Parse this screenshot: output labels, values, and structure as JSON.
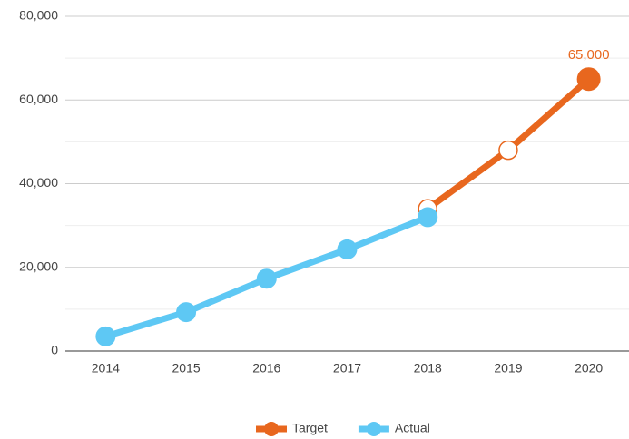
{
  "chart_data": {
    "type": "line",
    "categories": [
      "2014",
      "2015",
      "2016",
      "2017",
      "2018",
      "2019",
      "2020"
    ],
    "series": [
      {
        "name": "Target",
        "color": "#e8671e",
        "values": [
          null,
          null,
          null,
          null,
          34000,
          48000,
          65000
        ],
        "value_labels": [
          null,
          null,
          null,
          null,
          null,
          null,
          "65,000"
        ]
      },
      {
        "name": "Actual",
        "color": "#5ec8f4",
        "values": [
          3500,
          9300,
          17300,
          24300,
          32000,
          null,
          null
        ]
      }
    ],
    "ylim": [
      0,
      80000
    ],
    "yticks": [
      0,
      {
        "value": 20000,
        "label": "20,000"
      },
      {
        "value": 40000,
        "label": "40,000"
      },
      {
        "value": 60000,
        "label": "60,000"
      },
      {
        "value": 80000,
        "label": "80,000"
      }
    ],
    "minor_yticks": [
      10000,
      30000,
      50000,
      70000
    ],
    "grid": true,
    "legend": "bottom"
  }
}
